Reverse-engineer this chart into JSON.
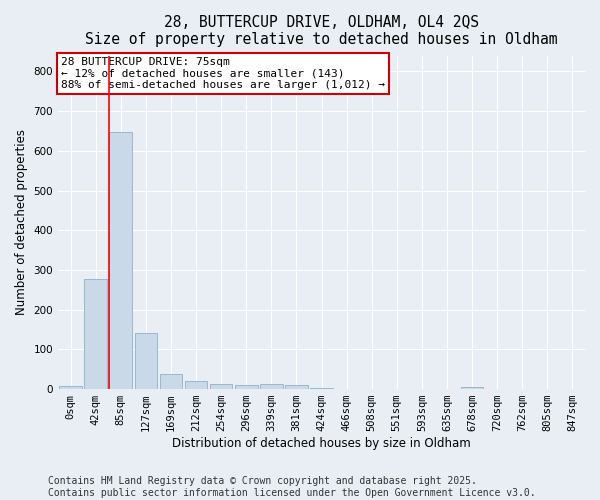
{
  "title_line1": "28, BUTTERCUP DRIVE, OLDHAM, OL4 2QS",
  "title_line2": "Size of property relative to detached houses in Oldham",
  "xlabel": "Distribution of detached houses by size in Oldham",
  "ylabel": "Number of detached properties",
  "bar_color": "#c9d9e8",
  "bar_edge_color": "#8ab4cc",
  "categories": [
    "0sqm",
    "42sqm",
    "85sqm",
    "127sqm",
    "169sqm",
    "212sqm",
    "254sqm",
    "296sqm",
    "339sqm",
    "381sqm",
    "424sqm",
    "466sqm",
    "508sqm",
    "551sqm",
    "593sqm",
    "635sqm",
    "678sqm",
    "720sqm",
    "762sqm",
    "805sqm",
    "847sqm"
  ],
  "values": [
    7,
    278,
    648,
    140,
    38,
    20,
    13,
    10,
    12,
    10,
    3,
    0,
    0,
    0,
    0,
    0,
    6,
    0,
    0,
    0,
    0
  ],
  "ylim": [
    0,
    840
  ],
  "yticks": [
    0,
    100,
    200,
    300,
    400,
    500,
    600,
    700,
    800
  ],
  "red_line_bin": 2,
  "annotation_line1": "28 BUTTERCUP DRIVE: 75sqm",
  "annotation_line2": "← 12% of detached houses are smaller (143)",
  "annotation_line3": "88% of semi-detached houses are larger (1,012) →",
  "annotation_box_color": "#ffffff",
  "annotation_box_edge": "#cc0000",
  "footer_line1": "Contains HM Land Registry data © Crown copyright and database right 2025.",
  "footer_line2": "Contains public sector information licensed under the Open Government Licence v3.0.",
  "background_color": "#e8eef4",
  "plot_background": "#e8eef4",
  "grid_color": "#ffffff",
  "title_fontsize": 10.5,
  "axis_label_fontsize": 8.5,
  "tick_fontsize": 7.5,
  "footer_fontsize": 7,
  "annotation_fontsize": 8
}
